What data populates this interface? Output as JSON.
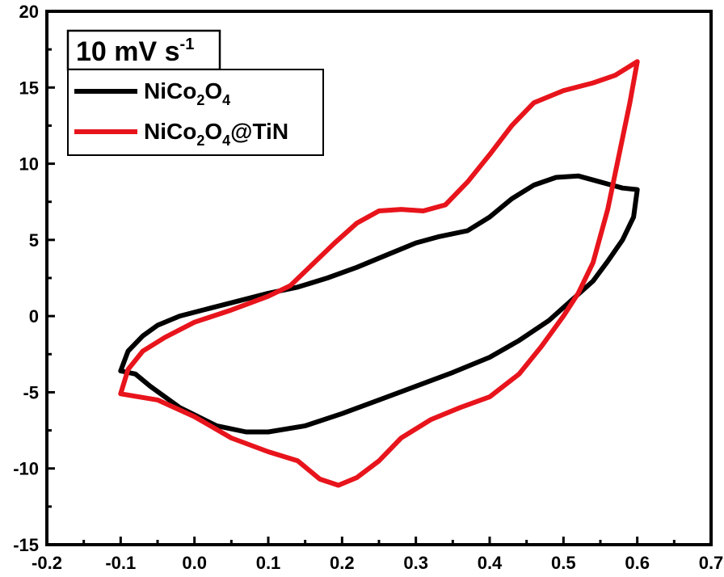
{
  "chart_data": {
    "type": "line",
    "title": "10 mV s",
    "title_superscript": "-1",
    "xlabel": "",
    "ylabel": "",
    "xlim": [
      -0.2,
      0.7
    ],
    "ylim": [
      -15,
      20
    ],
    "x_ticks": [
      "-0.2",
      "-0.1",
      "0.0",
      "0.1",
      "0.2",
      "0.3",
      "0.4",
      "0.5",
      "0.6",
      "0.7"
    ],
    "y_ticks": [
      "-15",
      "-10",
      "-5",
      "0",
      "5",
      "10",
      "15",
      "20"
    ],
    "grid": false,
    "legend_position": "top-left",
    "series": [
      {
        "name": "NiCo2O4",
        "name_parts": {
          "a": "NiCo",
          "s1": "2",
          "b": "O",
          "s2": "4",
          "c": ""
        },
        "color": "#000000",
        "points": [
          [
            -0.1,
            -3.6
          ],
          [
            -0.09,
            -2.3
          ],
          [
            -0.07,
            -1.3
          ],
          [
            -0.05,
            -0.6
          ],
          [
            -0.02,
            0.0
          ],
          [
            0.02,
            0.5
          ],
          [
            0.06,
            1.0
          ],
          [
            0.1,
            1.5
          ],
          [
            0.14,
            1.9
          ],
          [
            0.18,
            2.5
          ],
          [
            0.22,
            3.2
          ],
          [
            0.26,
            4.0
          ],
          [
            0.3,
            4.8
          ],
          [
            0.33,
            5.2
          ],
          [
            0.37,
            5.6
          ],
          [
            0.4,
            6.5
          ],
          [
            0.43,
            7.7
          ],
          [
            0.46,
            8.6
          ],
          [
            0.49,
            9.1
          ],
          [
            0.52,
            9.2
          ],
          [
            0.55,
            8.8
          ],
          [
            0.58,
            8.4
          ],
          [
            0.6,
            8.3
          ],
          [
            0.595,
            6.5
          ],
          [
            0.58,
            5.0
          ],
          [
            0.56,
            3.6
          ],
          [
            0.54,
            2.3
          ],
          [
            0.51,
            1.0
          ],
          [
            0.48,
            -0.3
          ],
          [
            0.44,
            -1.6
          ],
          [
            0.4,
            -2.7
          ],
          [
            0.35,
            -3.7
          ],
          [
            0.3,
            -4.6
          ],
          [
            0.25,
            -5.5
          ],
          [
            0.2,
            -6.4
          ],
          [
            0.15,
            -7.2
          ],
          [
            0.1,
            -7.6
          ],
          [
            0.07,
            -7.6
          ],
          [
            0.03,
            -7.2
          ],
          [
            -0.02,
            -6.0
          ],
          [
            -0.06,
            -4.6
          ],
          [
            -0.08,
            -3.8
          ],
          [
            -0.1,
            -3.6
          ]
        ]
      },
      {
        "name": "NiCo2O4@TiN",
        "name_parts": {
          "a": "NiCo",
          "s1": "2",
          "b": "O",
          "s2": "4",
          "c": "@TiN"
        },
        "color": "#e8141c",
        "points": [
          [
            -0.1,
            -5.1
          ],
          [
            -0.09,
            -3.5
          ],
          [
            -0.07,
            -2.3
          ],
          [
            -0.04,
            -1.4
          ],
          [
            0.0,
            -0.4
          ],
          [
            0.05,
            0.4
          ],
          [
            0.1,
            1.3
          ],
          [
            0.13,
            2.0
          ],
          [
            0.16,
            3.4
          ],
          [
            0.19,
            4.8
          ],
          [
            0.22,
            6.1
          ],
          [
            0.25,
            6.9
          ],
          [
            0.28,
            7.0
          ],
          [
            0.31,
            6.9
          ],
          [
            0.34,
            7.3
          ],
          [
            0.37,
            8.8
          ],
          [
            0.4,
            10.6
          ],
          [
            0.43,
            12.5
          ],
          [
            0.46,
            14.0
          ],
          [
            0.5,
            14.8
          ],
          [
            0.54,
            15.3
          ],
          [
            0.57,
            15.8
          ],
          [
            0.6,
            16.7
          ],
          [
            0.59,
            14.0
          ],
          [
            0.575,
            10.5
          ],
          [
            0.56,
            7.0
          ],
          [
            0.54,
            3.5
          ],
          [
            0.52,
            1.5
          ],
          [
            0.5,
            0.0
          ],
          [
            0.47,
            -2.0
          ],
          [
            0.44,
            -3.8
          ],
          [
            0.4,
            -5.3
          ],
          [
            0.36,
            -6.0
          ],
          [
            0.32,
            -6.8
          ],
          [
            0.28,
            -8.0
          ],
          [
            0.25,
            -9.5
          ],
          [
            0.22,
            -10.6
          ],
          [
            0.195,
            -11.1
          ],
          [
            0.17,
            -10.7
          ],
          [
            0.14,
            -9.5
          ],
          [
            0.1,
            -8.9
          ],
          [
            0.05,
            -8.0
          ],
          [
            0.0,
            -6.6
          ],
          [
            -0.05,
            -5.5
          ],
          [
            -0.1,
            -5.1
          ]
        ]
      }
    ]
  }
}
